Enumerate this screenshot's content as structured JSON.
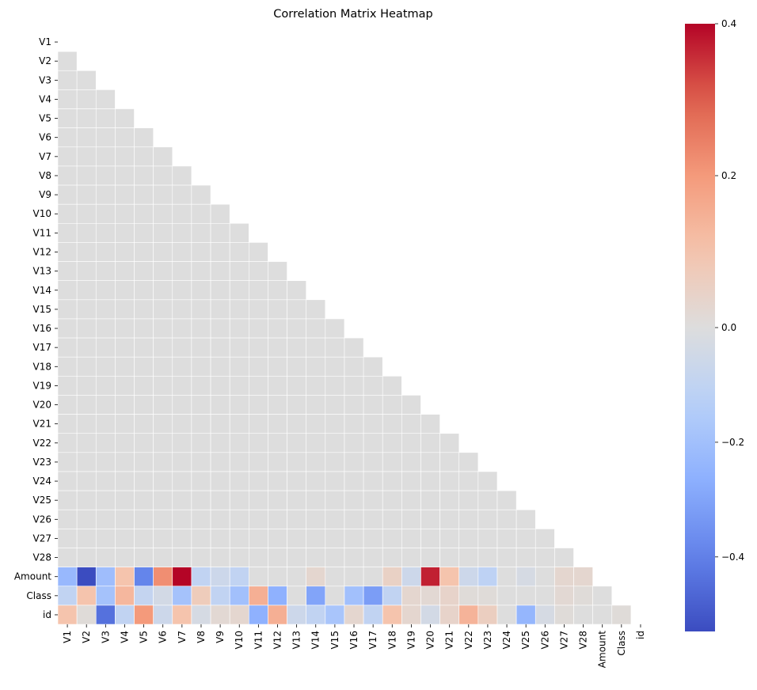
{
  "chart_data": {
    "type": "heatmap",
    "title": "Correlation Matrix Heatmap",
    "xlabel": "",
    "ylabel": "",
    "labels": [
      "V1",
      "V2",
      "V3",
      "V4",
      "V5",
      "V6",
      "V7",
      "V8",
      "V9",
      "V10",
      "V11",
      "V12",
      "V13",
      "V14",
      "V15",
      "V16",
      "V17",
      "V18",
      "V19",
      "V20",
      "V21",
      "V22",
      "V23",
      "V24",
      "V25",
      "V26",
      "V27",
      "V28",
      "Amount",
      "Class",
      "id"
    ],
    "mask": "upper-triangle-including-diagonal",
    "colormap": "coolwarm",
    "vmin": -0.53,
    "vmax": 0.4,
    "center_value": 0.0,
    "cell_border_color": "#ffffff",
    "grid": false,
    "default_lower_value": 0.0,
    "rows": {
      "Amount": [
        -0.23,
        -0.53,
        -0.21,
        0.1,
        -0.39,
        0.22,
        0.4,
        -0.1,
        -0.06,
        -0.1,
        0.0,
        0.0,
        0.0,
        0.03,
        0.0,
        0.0,
        0.0,
        0.05,
        -0.06,
        0.37,
        0.1,
        -0.06,
        -0.11,
        0.0,
        -0.03,
        0.0,
        0.03,
        0.03
      ],
      "Class": [
        -0.1,
        0.1,
        -0.19,
        0.13,
        -0.09,
        -0.04,
        -0.19,
        0.07,
        -0.1,
        -0.2,
        0.15,
        -0.26,
        0.0,
        -0.3,
        0.0,
        -0.2,
        -0.32,
        -0.1,
        0.03,
        0.02,
        0.04,
        0.01,
        0.01,
        0.0,
        0.0,
        0.0,
        0.02,
        0.01,
        0.0
      ],
      "id": [
        0.1,
        0.01,
        -0.44,
        -0.1,
        0.2,
        -0.06,
        0.1,
        -0.03,
        0.02,
        0.03,
        -0.26,
        0.15,
        -0.06,
        -0.1,
        -0.18,
        0.03,
        -0.1,
        0.1,
        0.03,
        -0.04,
        0.04,
        0.14,
        0.06,
        0.0,
        -0.24,
        -0.03,
        0.01,
        0.0,
        0.0,
        0.01
      ]
    },
    "colorbar": {
      "ticks": [
        -0.4,
        -0.2,
        0.0,
        0.2,
        0.4
      ],
      "tick_labels": [
        "−0.4",
        "−0.2",
        "0.0",
        "0.2",
        "0.4"
      ],
      "position": "right"
    }
  }
}
